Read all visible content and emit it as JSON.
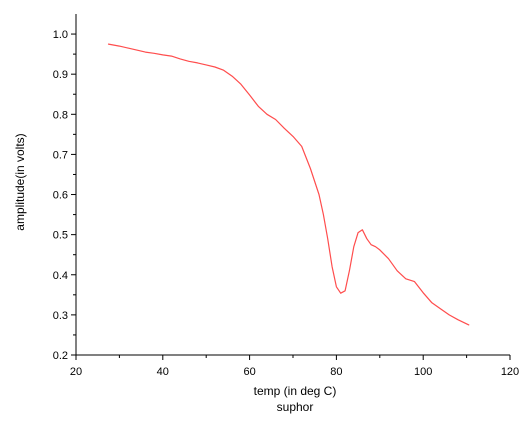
{
  "chart_data": {
    "type": "line",
    "title": "",
    "xlabel": "temp (in deg C)",
    "xlabel2": "suphor",
    "ylabel": "amplitude(in volts)",
    "xlim": [
      20,
      120
    ],
    "ylim": [
      0.2,
      1.05
    ],
    "xticks": [
      "20",
      "40",
      "60",
      "80",
      "100",
      "120"
    ],
    "yticks": [
      "0.2",
      "0.3",
      "0.4",
      "0.5",
      "0.6",
      "0.7",
      "0.8",
      "0.9",
      "1.0"
    ],
    "grid": false,
    "legend": "none",
    "series": [
      {
        "color": "#ff4d4d",
        "x": [
          27.5,
          30,
          32,
          34,
          36,
          38,
          40,
          42,
          44,
          46,
          48,
          50,
          52,
          54,
          56,
          58,
          60,
          62,
          64,
          66,
          68,
          70,
          72,
          74,
          76,
          77,
          78,
          79,
          80,
          81,
          82,
          83,
          84,
          85,
          86,
          87,
          88,
          89,
          90,
          92,
          94,
          96,
          98,
          100,
          102,
          104,
          106,
          108,
          110.5
        ],
        "y": [
          0.975,
          0.97,
          0.965,
          0.96,
          0.955,
          0.952,
          0.948,
          0.945,
          0.938,
          0.932,
          0.928,
          0.923,
          0.918,
          0.91,
          0.895,
          0.875,
          0.848,
          0.82,
          0.8,
          0.787,
          0.765,
          0.745,
          0.72,
          0.665,
          0.6,
          0.55,
          0.49,
          0.42,
          0.37,
          0.354,
          0.36,
          0.41,
          0.47,
          0.505,
          0.512,
          0.49,
          0.475,
          0.47,
          0.462,
          0.44,
          0.41,
          0.39,
          0.383,
          0.355,
          0.33,
          0.315,
          0.3,
          0.288,
          0.275
        ]
      }
    ]
  }
}
